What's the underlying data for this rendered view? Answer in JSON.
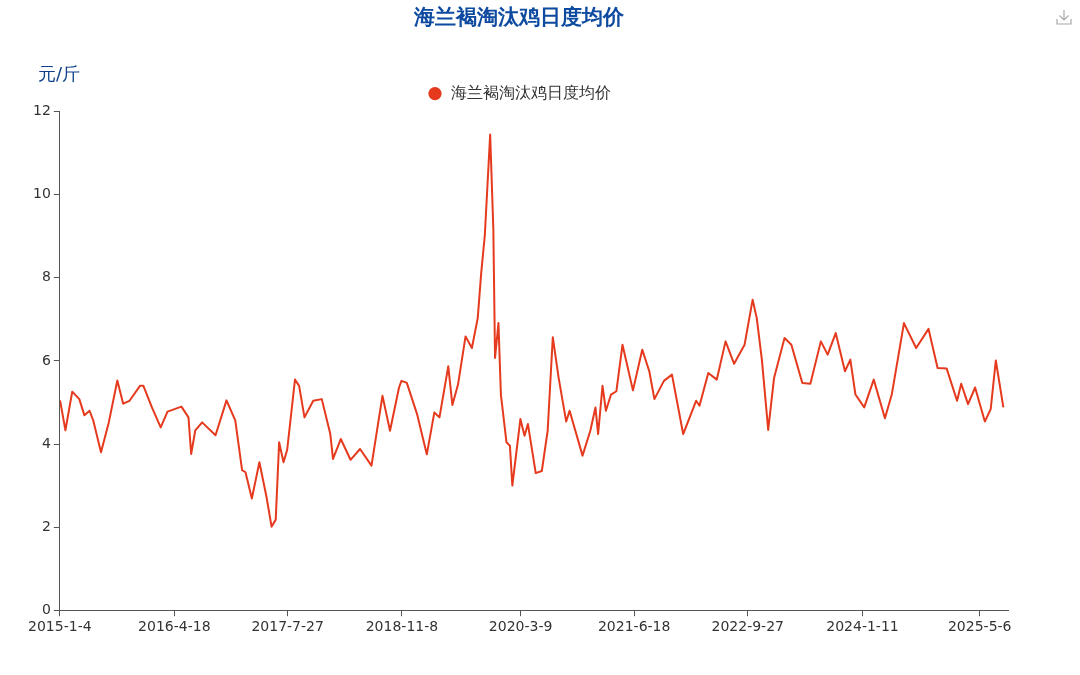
{
  "chart_data": {
    "type": "line",
    "title": "海兰褐淘汰鸡日度均价",
    "ylabel": "元/斤",
    "legend": "top",
    "grid": false,
    "xlim": [
      "2015-01-04",
      "2025-08-30"
    ],
    "xticks": [
      {
        "value": "2015-01-04",
        "label": "2015-1-4"
      },
      {
        "value": "2016-04-18",
        "label": "2016-4-18"
      },
      {
        "value": "2017-07-27",
        "label": "2017-7-27"
      },
      {
        "value": "2018-11-08",
        "label": "2018-11-8"
      },
      {
        "value": "2020-03-09",
        "label": "2020-3-9"
      },
      {
        "value": "2021-06-18",
        "label": "2021-6-18"
      },
      {
        "value": "2022-09-27",
        "label": "2022-9-27"
      },
      {
        "value": "2024-01-11",
        "label": "2024-1-11"
      },
      {
        "value": "2025-05-06",
        "label": "2025-5-6"
      }
    ],
    "ylim": [
      0,
      12
    ],
    "yticks": [
      0,
      2,
      4,
      6,
      8,
      10,
      12
    ],
    "series": [
      {
        "name": "海兰褐淘汰鸡日度均价",
        "color": "#e53a1e",
        "x": [
          "2015-01-05",
          "2015-01-27",
          "2015-02-24",
          "2015-03-25",
          "2015-04-15",
          "2015-05-06",
          "2015-05-21",
          "2015-06-22",
          "2015-07-24",
          "2015-08-28",
          "2015-09-21",
          "2015-10-17",
          "2015-11-29",
          "2015-12-13",
          "2016-01-17",
          "2016-02-22",
          "2016-03-21",
          "2016-05-17",
          "2016-06-15",
          "2016-06-26",
          "2016-07-13",
          "2016-08-10",
          "2016-10-04",
          "2016-11-18",
          "2016-12-24",
          "2017-01-21",
          "2017-02-04",
          "2017-03-02",
          "2017-04-02",
          "2017-05-01",
          "2017-05-22",
          "2017-06-08",
          "2017-06-22",
          "2017-07-10",
          "2017-07-25",
          "2017-08-26",
          "2017-09-12",
          "2017-10-04",
          "2017-11-09",
          "2017-12-14",
          "2018-01-18",
          "2018-01-29",
          "2018-03-02",
          "2018-04-11",
          "2018-05-20",
          "2018-07-06",
          "2018-08-20",
          "2018-09-20",
          "2018-10-27",
          "2018-11-06",
          "2018-11-28",
          "2019-01-09",
          "2019-02-18",
          "2019-03-21",
          "2019-04-11",
          "2019-05-17",
          "2019-06-03",
          "2019-06-26",
          "2019-07-27",
          "2019-08-22",
          "2019-09-15",
          "2019-09-29",
          "2019-10-14",
          "2019-11-05",
          "2019-11-18",
          "2019-11-25",
          "2019-12-09",
          "2019-12-19",
          "2020-01-11",
          "2020-01-25",
          "2020-02-04",
          "2020-03-08",
          "2020-03-25",
          "2020-04-08",
          "2020-05-10",
          "2020-06-04",
          "2020-06-28",
          "2020-07-19",
          "2020-08-12",
          "2020-09-12",
          "2020-09-26",
          "2020-11-18",
          "2020-12-20",
          "2021-01-10",
          "2021-01-21",
          "2021-02-08",
          "2021-02-22",
          "2021-03-15",
          "2021-04-06",
          "2021-05-01",
          "2021-06-13",
          "2021-07-21",
          "2021-08-19",
          "2021-09-09",
          "2021-10-18",
          "2021-11-20",
          "2022-01-05",
          "2022-02-06",
          "2022-02-27",
          "2022-03-13",
          "2022-04-18",
          "2022-05-23",
          "2022-06-28",
          "2022-08-02",
          "2022-09-14",
          "2022-10-17",
          "2022-11-03",
          "2022-11-24",
          "2022-12-20",
          "2023-01-13",
          "2023-02-25",
          "2023-03-25",
          "2023-05-09",
          "2023-06-11",
          "2023-07-24",
          "2023-08-21",
          "2023-09-23",
          "2023-10-31",
          "2023-11-22",
          "2023-12-13",
          "2024-01-18",
          "2024-02-26",
          "2024-04-12",
          "2024-05-10",
          "2024-06-29",
          "2024-08-18",
          "2024-10-08",
          "2024-11-14",
          "2024-12-21",
          "2025-02-02",
          "2025-02-19",
          "2025-03-19",
          "2025-04-17",
          "2025-05-27",
          "2025-06-20",
          "2025-07-11",
          "2025-08-11"
        ],
        "values": [
          5.05,
          4.33,
          5.26,
          5.08,
          4.69,
          4.8,
          4.57,
          3.8,
          4.52,
          5.53,
          4.97,
          5.04,
          5.4,
          5.4,
          4.88,
          4.4,
          4.78,
          4.9,
          4.64,
          3.76,
          4.33,
          4.52,
          4.21,
          5.05,
          4.57,
          3.37,
          3.32,
          2.69,
          3.56,
          2.73,
          2.01,
          2.18,
          4.04,
          3.56,
          3.86,
          5.55,
          5.4,
          4.64,
          5.04,
          5.08,
          4.24,
          3.64,
          4.12,
          3.62,
          3.88,
          3.48,
          5.16,
          4.32,
          5.36,
          5.52,
          5.47,
          4.72,
          3.75,
          4.76,
          4.64,
          5.87,
          4.94,
          5.43,
          6.59,
          6.31,
          7.03,
          8.1,
          9.02,
          11.45,
          9.18,
          6.07,
          6.91,
          5.19,
          4.04,
          3.96,
          3.0,
          4.6,
          4.2,
          4.48,
          3.3,
          3.35,
          4.32,
          6.57,
          5.59,
          4.54,
          4.8,
          3.72,
          4.32,
          4.88,
          4.24,
          5.4,
          4.8,
          5.19,
          5.27,
          6.39,
          5.29,
          6.27,
          5.75,
          5.08,
          5.52,
          5.67,
          4.24,
          4.72,
          5.04,
          4.92,
          5.71,
          5.55,
          6.47,
          5.93,
          6.39,
          7.47,
          7.03,
          6.03,
          4.34,
          5.59,
          6.55,
          6.39,
          5.47,
          5.45,
          6.47,
          6.15,
          6.67,
          5.75,
          6.03,
          5.19,
          4.88,
          5.55,
          4.62,
          5.19,
          6.91,
          6.31,
          6.77,
          5.83,
          5.82,
          5.04,
          5.45,
          4.96,
          5.36,
          4.54,
          4.84,
          6.01,
          4.88
        ]
      }
    ]
  }
}
